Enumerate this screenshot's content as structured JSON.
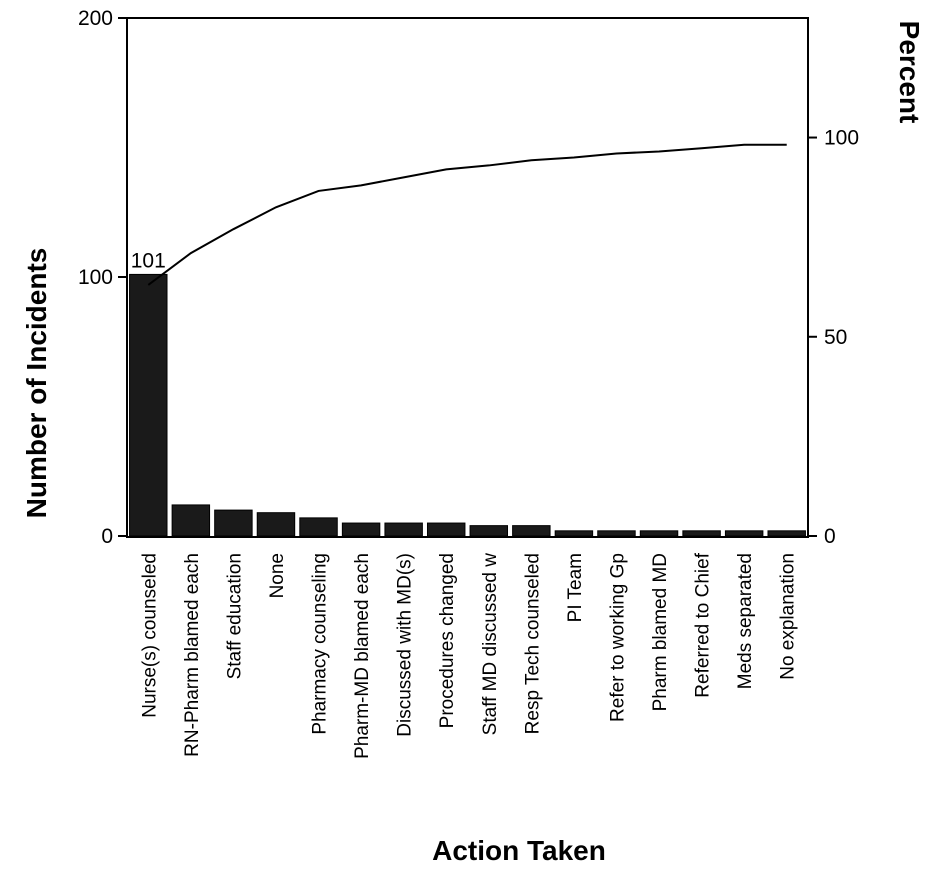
{
  "chart_data": {
    "type": "bar",
    "subtype": "pareto",
    "xlabel": "Action Taken",
    "ylabel": "Number of Incidents",
    "y2label": "Percent",
    "ylim": [
      0,
      200
    ],
    "y2lim": [
      0,
      130
    ],
    "yticks": [
      "0",
      "100",
      "200"
    ],
    "y2ticks": [
      "0",
      "50",
      "100"
    ],
    "categories": [
      "Nurse(s) counseled",
      "RN-Pharm blamed each",
      "Staff education",
      "None",
      "Pharmacy counseling",
      "Pharm-MD blamed each",
      "Discussed with MD(s)",
      "Procedures changed",
      "Staff MD discussed w",
      "Resp Tech counseled",
      "PI Team",
      "Refer to working Gp",
      "Pharm blamed MD",
      "Referred to Chief",
      "Meds separated",
      "No explanation"
    ],
    "series": [
      {
        "kind": "bar",
        "axis": "left",
        "values": [
          101,
          12,
          10,
          9,
          7,
          5,
          5,
          5,
          4,
          4,
          2,
          2,
          2,
          2,
          2,
          2
        ],
        "data_labels": [
          "101",
          "",
          "",
          "",
          "",
          "",
          "",
          "",
          "",
          "",
          "",
          "",
          "",
          "",
          "",
          ""
        ]
      },
      {
        "kind": "line",
        "axis": "right",
        "values": [
          63,
          71,
          77,
          82.5,
          86.6,
          88,
          90,
          92,
          93,
          94.3,
          95,
          96,
          96.5,
          97.3,
          98.2,
          98.2
        ]
      }
    ],
    "grid": false,
    "legend": "none"
  }
}
